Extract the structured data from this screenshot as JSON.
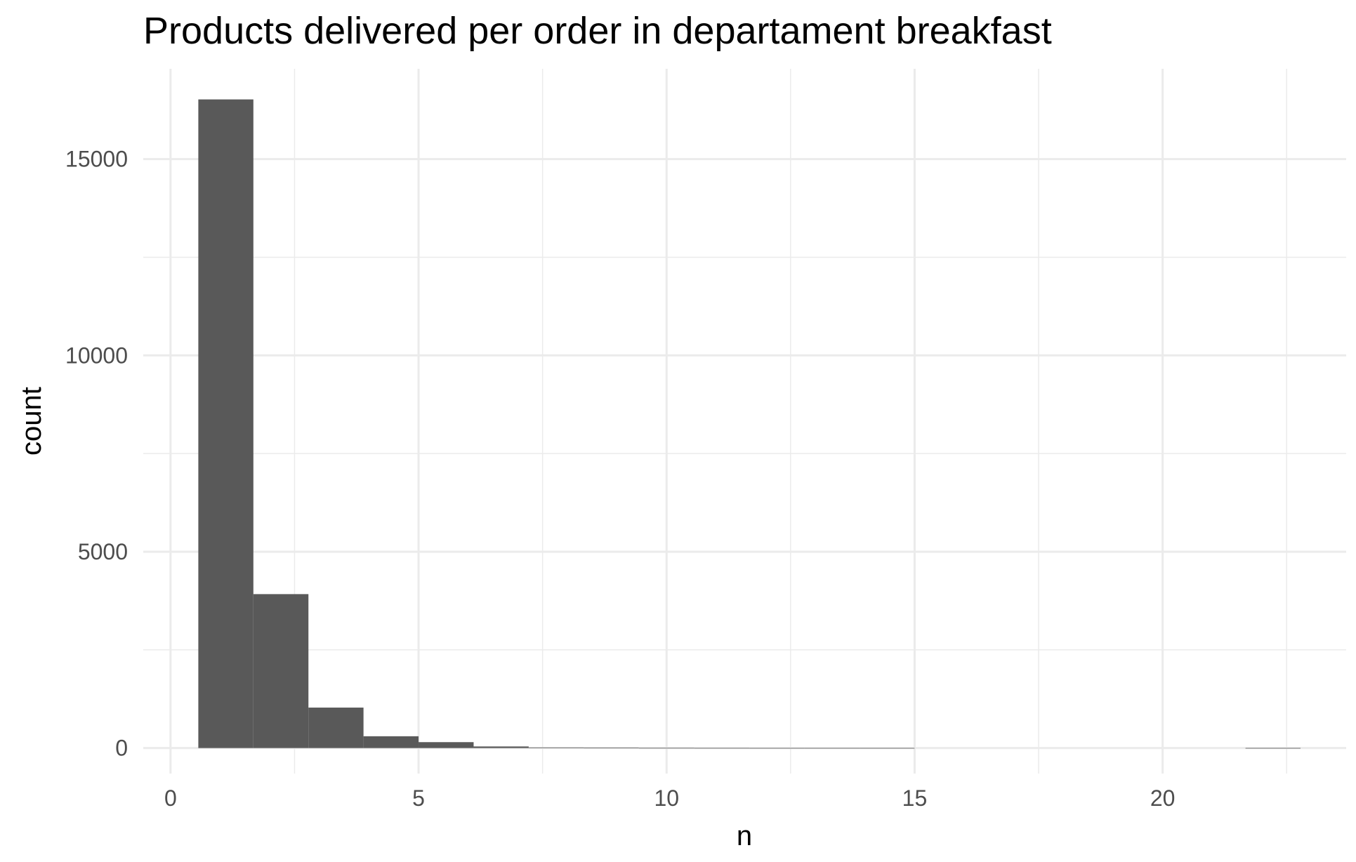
{
  "chart_data": {
    "type": "bar",
    "title": "Products delivered per order in departament breakfast",
    "xlabel": "n",
    "ylabel": "count",
    "xlim": [
      -0.55,
      23.7
    ],
    "ylim": [
      -650,
      17300
    ],
    "x_ticks": [
      0,
      5,
      10,
      15,
      20
    ],
    "x_tick_labels": [
      "0",
      "5",
      "10",
      "15",
      "20"
    ],
    "y_ticks": [
      0,
      5000,
      10000,
      15000
    ],
    "y_tick_labels": [
      "0",
      "5000",
      "10000",
      "15000"
    ],
    "grid": true,
    "legend": "none",
    "bar_color": "#595959",
    "grid_color": "#ebebeb",
    "bins": [
      {
        "x0": 0.56,
        "x1": 1.67,
        "count": 16520
      },
      {
        "x0": 1.67,
        "x1": 2.78,
        "count": 3920
      },
      {
        "x0": 2.78,
        "x1": 3.89,
        "count": 1030
      },
      {
        "x0": 3.89,
        "x1": 5.0,
        "count": 300
      },
      {
        "x0": 5.0,
        "x1": 6.11,
        "count": 150
      },
      {
        "x0": 6.11,
        "x1": 7.22,
        "count": 40
      },
      {
        "x0": 7.22,
        "x1": 8.33,
        "count": 15
      },
      {
        "x0": 8.33,
        "x1": 9.44,
        "count": 8
      },
      {
        "x0": 9.44,
        "x1": 10.56,
        "count": 4
      },
      {
        "x0": 10.56,
        "x1": 11.67,
        "count": 2
      },
      {
        "x0": 11.67,
        "x1": 12.78,
        "count": 1
      },
      {
        "x0": 12.78,
        "x1": 13.89,
        "count": 1
      },
      {
        "x0": 13.89,
        "x1": 15.0,
        "count": 1
      },
      {
        "x0": 15.0,
        "x1": 16.11,
        "count": 0
      },
      {
        "x0": 16.11,
        "x1": 17.22,
        "count": 0
      },
      {
        "x0": 17.22,
        "x1": 18.33,
        "count": 0
      },
      {
        "x0": 18.33,
        "x1": 19.44,
        "count": 0
      },
      {
        "x0": 19.44,
        "x1": 20.56,
        "count": 0
      },
      {
        "x0": 20.56,
        "x1": 21.67,
        "count": 0
      },
      {
        "x0": 21.67,
        "x1": 22.78,
        "count": 1
      }
    ]
  }
}
